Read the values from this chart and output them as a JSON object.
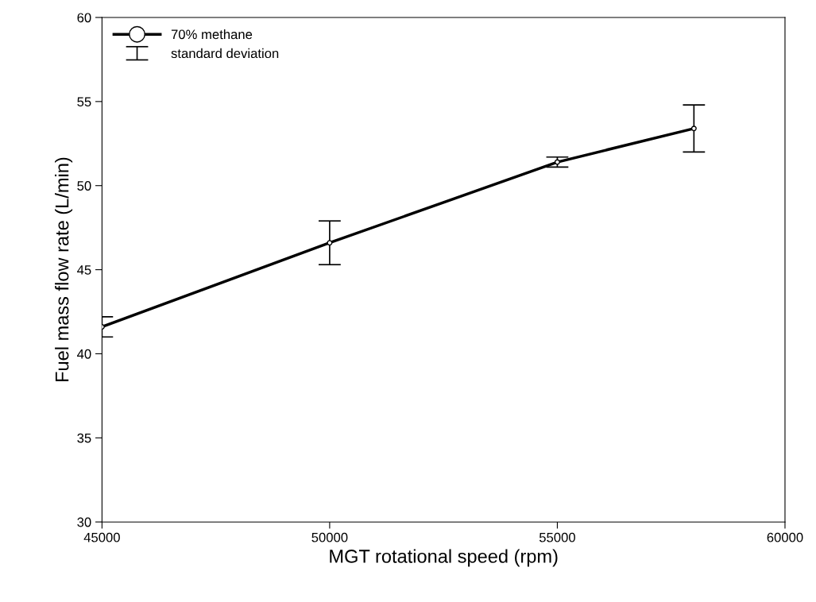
{
  "chart_data": {
    "type": "line",
    "xlabel": "MGT rotational speed (rpm)",
    "ylabel": "Fuel mass flow rate (L/min)",
    "x": [
      45000,
      50000,
      55000,
      58000
    ],
    "series": [
      {
        "name": "70% methane",
        "color": "#000000",
        "values": [
          41.6,
          46.6,
          51.4,
          53.4
        ],
        "errors": [
          0.6,
          1.3,
          0.3,
          1.4
        ]
      }
    ],
    "annotations": [
      "standard deviation"
    ],
    "xlim": [
      45000,
      60000
    ],
    "xticks": [
      45000,
      50000,
      55000,
      60000
    ],
    "ylim": [
      30,
      60
    ],
    "yticks": [
      30,
      35,
      40,
      45,
      50,
      55,
      60
    ],
    "marker": "circle",
    "line_style": "solid",
    "legend": "top left",
    "grid": false
  }
}
